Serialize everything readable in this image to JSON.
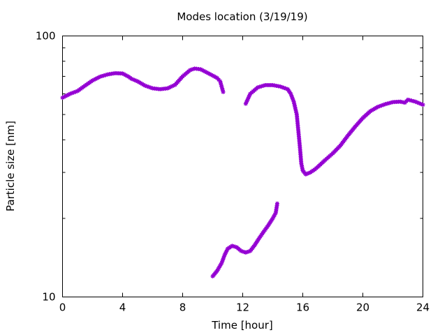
{
  "chart_data": {
    "type": "scatter",
    "title": "Modes location (3/19/19)",
    "xlabel": "Time [hour]",
    "ylabel": "Particle size [nm]",
    "xlim": [
      0,
      24
    ],
    "ylim": [
      10,
      100
    ],
    "yscale": "log",
    "grid": false,
    "legend": "none",
    "x_ticks": [
      {
        "value": 0,
        "label": "0"
      },
      {
        "value": 4,
        "label": "4"
      },
      {
        "value": 8,
        "label": "8"
      },
      {
        "value": 12,
        "label": "12"
      },
      {
        "value": 16,
        "label": "16"
      },
      {
        "value": 20,
        "label": "20"
      },
      {
        "value": 24,
        "label": "24"
      }
    ],
    "y_ticks": [
      {
        "value": 10,
        "label": "10"
      },
      {
        "value": 100,
        "label": "100"
      }
    ],
    "marker_color": "#9400d3",
    "series": [
      {
        "points": [
          [
            0.0,
            58.0
          ],
          [
            0.5,
            60.0
          ],
          [
            1.0,
            61.5
          ],
          [
            1.5,
            64.5
          ],
          [
            2.0,
            67.5
          ],
          [
            2.5,
            69.8
          ],
          [
            3.0,
            71.2
          ],
          [
            3.5,
            72.0
          ],
          [
            4.0,
            71.8
          ],
          [
            4.4,
            69.8
          ],
          [
            4.6,
            68.5
          ],
          [
            5.0,
            67.0
          ],
          [
            5.5,
            64.5
          ],
          [
            6.0,
            63.0
          ],
          [
            6.5,
            62.5
          ],
          [
            7.0,
            63.0
          ],
          [
            7.5,
            65.0
          ],
          [
            8.0,
            70.0
          ],
          [
            8.5,
            74.0
          ],
          [
            8.8,
            75.0
          ],
          [
            9.2,
            74.5
          ],
          [
            9.6,
            72.5
          ],
          [
            10.0,
            70.5
          ],
          [
            10.3,
            69.0
          ],
          [
            10.5,
            67.0
          ],
          [
            10.7,
            61.0
          ]
        ]
      },
      {
        "points": [
          [
            12.2,
            55.0
          ],
          [
            12.5,
            60.0
          ],
          [
            13.0,
            63.5
          ],
          [
            13.5,
            64.8
          ],
          [
            14.0,
            64.8
          ],
          [
            14.5,
            64.0
          ],
          [
            15.0,
            62.5
          ],
          [
            15.2,
            60.0
          ],
          [
            15.4,
            56.0
          ],
          [
            15.6,
            50.0
          ],
          [
            15.8,
            38.0
          ],
          [
            15.9,
            32.5
          ],
          [
            16.0,
            30.5
          ],
          [
            16.2,
            29.5
          ],
          [
            16.5,
            30.0
          ],
          [
            16.8,
            30.8
          ],
          [
            17.0,
            31.5
          ],
          [
            17.5,
            33.5
          ],
          [
            18.0,
            35.5
          ],
          [
            18.5,
            38.0
          ],
          [
            19.0,
            41.5
          ],
          [
            19.5,
            45.0
          ],
          [
            20.0,
            48.5
          ],
          [
            20.5,
            51.5
          ],
          [
            21.0,
            53.5
          ],
          [
            21.5,
            54.8
          ],
          [
            22.0,
            55.8
          ],
          [
            22.5,
            56.0
          ],
          [
            22.8,
            55.5
          ],
          [
            23.0,
            57.0
          ],
          [
            23.5,
            56.0
          ],
          [
            24.0,
            54.5
          ]
        ]
      },
      {
        "points": [
          [
            10.0,
            12.0
          ],
          [
            10.3,
            12.6
          ],
          [
            10.6,
            13.5
          ],
          [
            10.8,
            14.5
          ],
          [
            11.0,
            15.3
          ],
          [
            11.3,
            15.7
          ],
          [
            11.6,
            15.5
          ],
          [
            11.9,
            15.0
          ],
          [
            12.2,
            14.8
          ],
          [
            12.5,
            15.0
          ],
          [
            12.8,
            15.8
          ],
          [
            13.1,
            16.8
          ],
          [
            13.4,
            17.8
          ],
          [
            13.7,
            18.8
          ],
          [
            14.0,
            20.0
          ],
          [
            14.2,
            21.0
          ],
          [
            14.3,
            22.8
          ]
        ]
      }
    ]
  }
}
